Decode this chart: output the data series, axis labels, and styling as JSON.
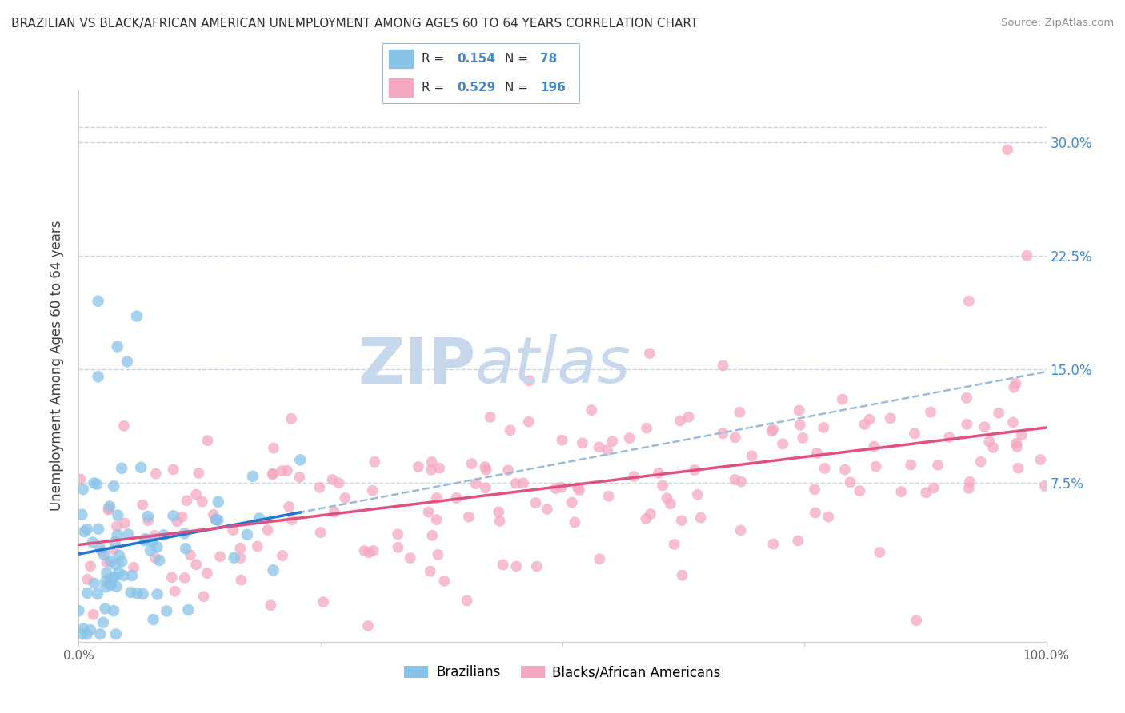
{
  "title": "BRAZILIAN VS BLACK/AFRICAN AMERICAN UNEMPLOYMENT AMONG AGES 60 TO 64 YEARS CORRELATION CHART",
  "source": "Source: ZipAtlas.com",
  "ylabel": "Unemployment Among Ages 60 to 64 years",
  "ytick_labels": [
    "7.5%",
    "15.0%",
    "22.5%",
    "30.0%"
  ],
  "ytick_values": [
    0.075,
    0.15,
    0.225,
    0.3
  ],
  "xlim": [
    0.0,
    1.0
  ],
  "ylim": [
    -0.03,
    0.335
  ],
  "blue_R": 0.154,
  "blue_N": 78,
  "pink_R": 0.529,
  "pink_N": 196,
  "blue_scatter_color": "#89C4E8",
  "pink_scatter_color": "#F4A8C0",
  "blue_line_color": "#2277CC",
  "pink_line_color": "#E05080",
  "dashed_line_color": "#99BBDD",
  "legend_label_blue": "Brazilians",
  "legend_label_pink": "Blacks/African Americans",
  "background_color": "#FFFFFF",
  "grid_color": "#C8D4E4",
  "title_color": "#303030",
  "source_color": "#909090",
  "axis_label_color": "#4488CC",
  "watermark_zip": "ZIP",
  "watermark_atlas": "atlas",
  "watermark_color": "#C8D8EC"
}
